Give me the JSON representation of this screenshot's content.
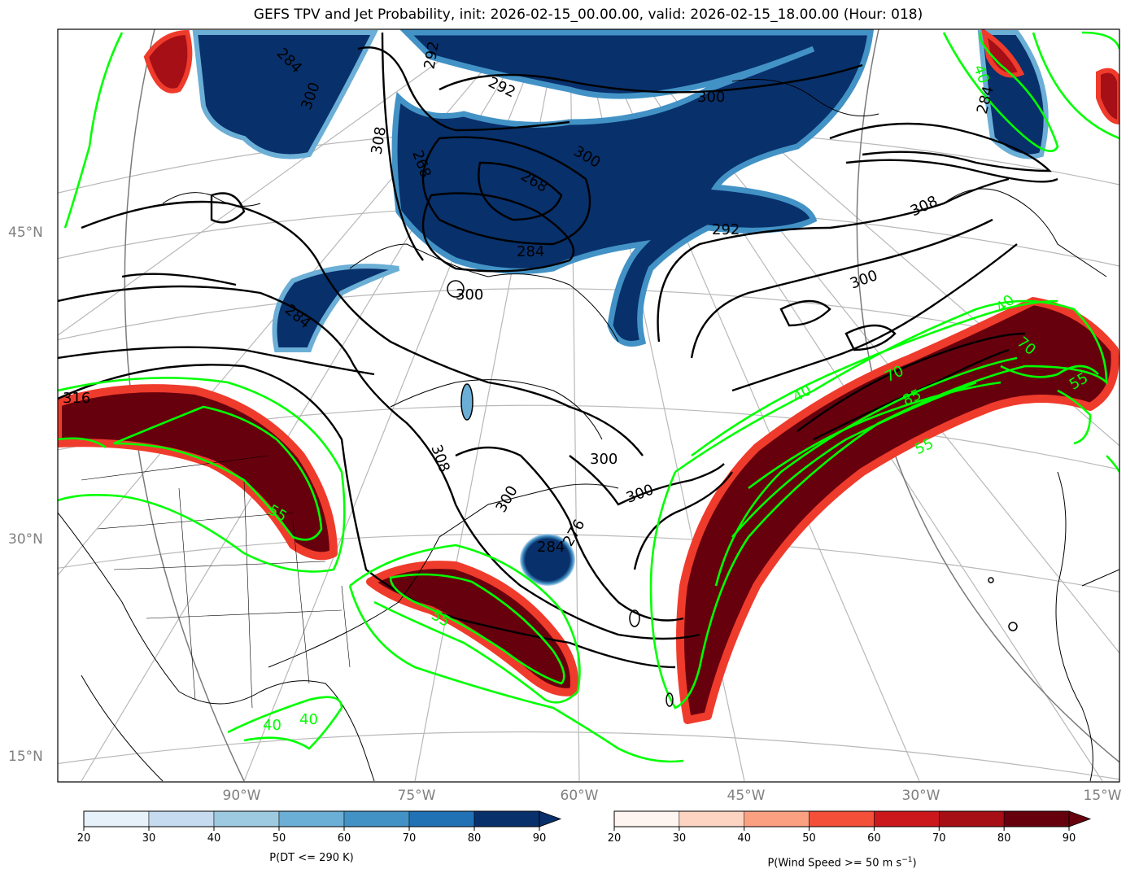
{
  "title": "GEFS TPV and Jet Probability, init: 2026-02-15_00.00.00, valid: 2026-02-15_18.00.00 (Hour: 018)",
  "lat_labels": [
    {
      "text": "45°N"
    },
    {
      "text": "30°N"
    },
    {
      "text": "15°N"
    }
  ],
  "lon_labels": [
    {
      "text": "90°W"
    },
    {
      "text": "75°W"
    },
    {
      "text": "60°W"
    },
    {
      "text": "45°W"
    },
    {
      "text": "30°W"
    },
    {
      "text": "15°W"
    }
  ],
  "colorbars": {
    "dt": {
      "label_prefix": "P(DT <= 290 K)",
      "ticks": [
        "20",
        "30",
        "40",
        "50",
        "60",
        "70",
        "80",
        "90"
      ],
      "colors": [
        "#e7f1fa",
        "#c6dbef",
        "#9ecae1",
        "#6baed6",
        "#4292c6",
        "#2171b5",
        "#08306b"
      ]
    },
    "wind": {
      "label_prefix": "P(Wind Speed >= 50 m s",
      "label_sup": "−1",
      "label_suffix": ")",
      "ticks": [
        "20",
        "30",
        "40",
        "50",
        "60",
        "70",
        "80",
        "90"
      ],
      "colors": [
        "#fff5f0",
        "#fdd4c2",
        "#fca082",
        "#f44f39",
        "#cb181d",
        "#a50f15",
        "#67000d"
      ]
    }
  },
  "contour_labels": {
    "theta": [
      "316",
      "308",
      "300",
      "292",
      "284",
      "300",
      "292",
      "300",
      "308",
      "300",
      "284",
      "284",
      "300",
      "292",
      "268",
      "268",
      "284",
      "276",
      "300",
      "308",
      "300",
      "300",
      "284"
    ],
    "jet": [
      "55",
      "55",
      "40",
      "40",
      "55",
      "85",
      "70",
      "70",
      "40",
      "40",
      "55",
      "40"
    ]
  },
  "colors": {
    "theta_contour": "#000000",
    "jet_contour": "#00ff00",
    "tpv_fill": "#08306b",
    "jet_fill": "#67000d",
    "grid": "#b0b0b0"
  }
}
